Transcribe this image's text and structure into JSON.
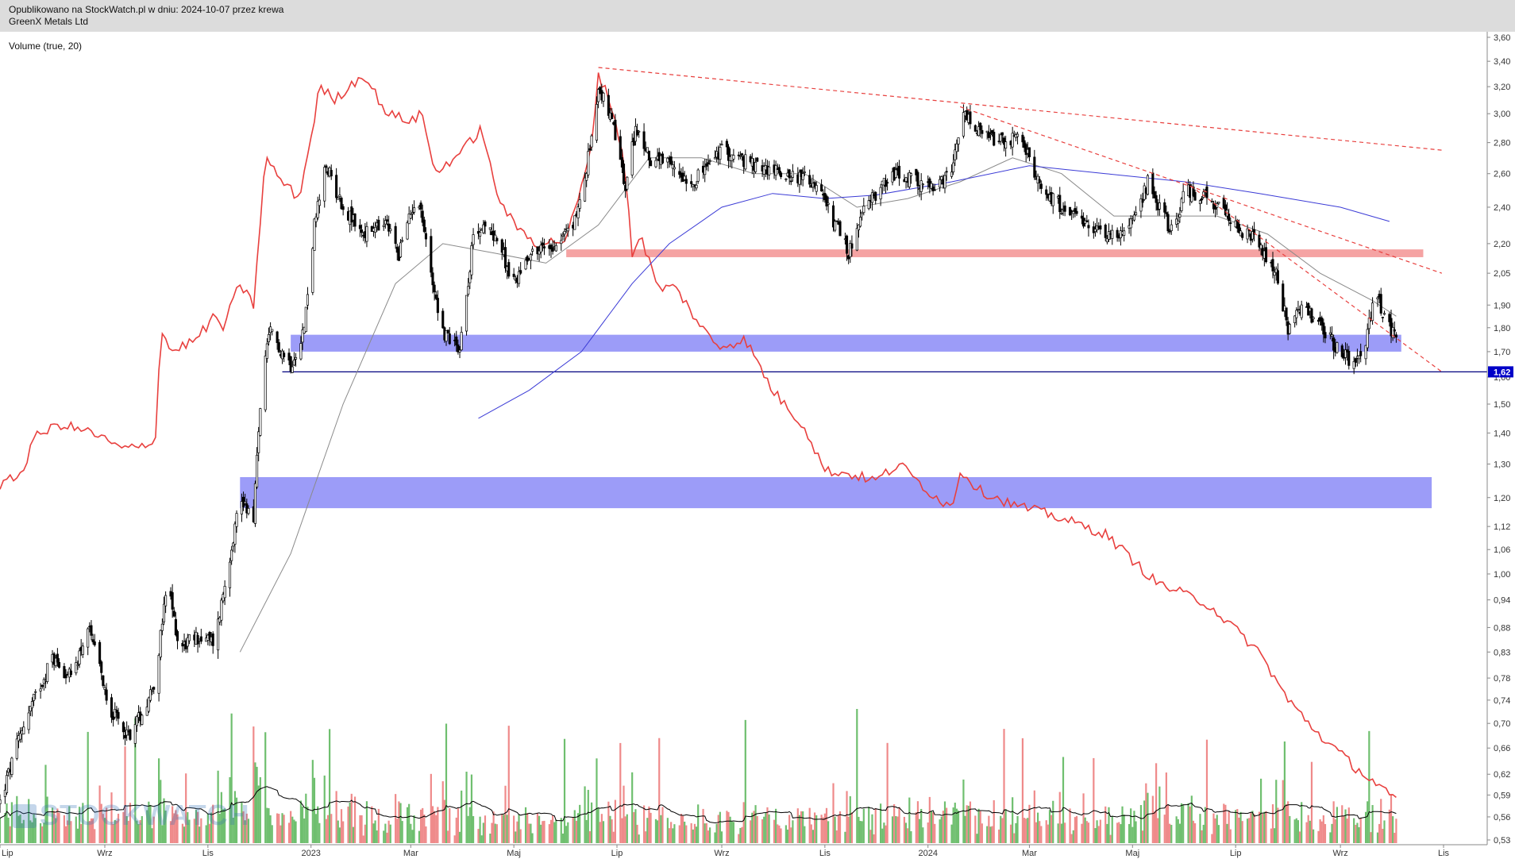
{
  "header": {
    "published": "Opublikowano na StockWatch.pl w dniu: 2024-10-07 przez krewa",
    "instrument": "GreenX Metals Ltd"
  },
  "volume_label": "Volume (true, 20)",
  "watermark": "STOCKWATCH",
  "colors": {
    "candle": "#000000",
    "relative_line": "#e8403e",
    "ma_long": "#3b3bd6",
    "ma_short": "#8a8a8a",
    "trendline": "#e8403e",
    "zone": "#7b7bf5",
    "resistance": "#f5a3a3",
    "support_line": "#00007f",
    "volume_up": "#6fbf6f",
    "volume_down": "#ef8a8a",
    "price_badge": "#0000c8"
  },
  "chart_data": {
    "type": "candlestick",
    "y_axis": {
      "scale": "log",
      "ylim": [
        0.53,
        3.6
      ],
      "ticks": [
        "3,60",
        "3,40",
        "3,20",
        "3,00",
        "2,80",
        "2,60",
        "2,40",
        "2,20",
        "2,05",
        "1,90",
        "1,80",
        "1,70",
        "1,60",
        "1,50",
        "1,40",
        "1,30",
        "1,20",
        "1,12",
        "1,06",
        "1,00",
        "0,94",
        "0,88",
        "0,83",
        "0,78",
        "0,74",
        "0,70",
        "0,66",
        "0,62",
        "0,59",
        "0,56",
        "0,53"
      ],
      "current_price": "1,62"
    },
    "x_axis": {
      "range": [
        "2022-07-01",
        "2024-11-01"
      ],
      "ticks": [
        {
          "label": "Lip",
          "date": "2022-07-01"
        },
        {
          "label": "Wrz",
          "date": "2022-09-01"
        },
        {
          "label": "Lis",
          "date": "2022-11-01"
        },
        {
          "label": "2023",
          "date": "2023-01-01"
        },
        {
          "label": "Mar",
          "date": "2023-03-01"
        },
        {
          "label": "Maj",
          "date": "2023-05-01"
        },
        {
          "label": "Lip",
          "date": "2023-07-01"
        },
        {
          "label": "Wrz",
          "date": "2023-09-01"
        },
        {
          "label": "Lis",
          "date": "2023-11-01"
        },
        {
          "label": "2024",
          "date": "2024-01-01"
        },
        {
          "label": "Mar",
          "date": "2024-03-01"
        },
        {
          "label": "Maj",
          "date": "2024-05-01"
        },
        {
          "label": "Lip",
          "date": "2024-07-01"
        },
        {
          "label": "Wrz",
          "date": "2024-09-01"
        },
        {
          "label": "Lis",
          "date": "2024-11-01"
        }
      ]
    },
    "price_path": [
      [
        "2022-07-01",
        0.58
      ],
      [
        "2022-07-15",
        0.7
      ],
      [
        "2022-08-01",
        0.82
      ],
      [
        "2022-08-12",
        0.78
      ],
      [
        "2022-08-22",
        0.88
      ],
      [
        "2022-09-05",
        0.72
      ],
      [
        "2022-09-15",
        0.68
      ],
      [
        "2022-09-25",
        0.73
      ],
      [
        "2022-10-01",
        0.78
      ],
      [
        "2022-10-08",
        0.98
      ],
      [
        "2022-10-15",
        0.84
      ],
      [
        "2022-10-25",
        0.86
      ],
      [
        "2022-11-05",
        0.85
      ],
      [
        "2022-11-12",
        1.0
      ],
      [
        "2022-11-20",
        1.2
      ],
      [
        "2022-11-28",
        1.15
      ],
      [
        "2022-12-03",
        1.6
      ],
      [
        "2022-12-08",
        1.78
      ],
      [
        "2022-12-15",
        1.7
      ],
      [
        "2022-12-20",
        1.65
      ],
      [
        "2022-12-28",
        1.8
      ],
      [
        "2023-01-03",
        2.3
      ],
      [
        "2023-01-10",
        2.65
      ],
      [
        "2023-01-20",
        2.4
      ],
      [
        "2023-02-01",
        2.25
      ],
      [
        "2023-02-15",
        2.3
      ],
      [
        "2023-02-22",
        2.15
      ],
      [
        "2023-03-05",
        2.5
      ],
      [
        "2023-03-12",
        2.1
      ],
      [
        "2023-03-20",
        1.78
      ],
      [
        "2023-03-30",
        1.72
      ],
      [
        "2023-04-08",
        2.3
      ],
      [
        "2023-04-20",
        2.25
      ],
      [
        "2023-05-01",
        2.0
      ],
      [
        "2023-05-10",
        2.15
      ],
      [
        "2023-05-25",
        2.2
      ],
      [
        "2023-06-05",
        2.3
      ],
      [
        "2023-06-12",
        2.55
      ],
      [
        "2023-06-20",
        3.2
      ],
      [
        "2023-06-25",
        3.05
      ],
      [
        "2023-07-01",
        2.8
      ],
      [
        "2023-07-06",
        2.5
      ],
      [
        "2023-07-12",
        2.9
      ],
      [
        "2023-07-20",
        2.7
      ],
      [
        "2023-08-01",
        2.65
      ],
      [
        "2023-08-15",
        2.55
      ],
      [
        "2023-09-01",
        2.75
      ],
      [
        "2023-09-20",
        2.65
      ],
      [
        "2023-10-10",
        2.6
      ],
      [
        "2023-10-25",
        2.55
      ],
      [
        "2023-11-05",
        2.35
      ],
      [
        "2023-11-15",
        2.15
      ],
      [
        "2023-11-25",
        2.4
      ],
      [
        "2023-12-10",
        2.6
      ],
      [
        "2023-12-25",
        2.55
      ],
      [
        "2024-01-05",
        2.5
      ],
      [
        "2024-01-15",
        2.6
      ],
      [
        "2024-01-22",
        3.0
      ],
      [
        "2024-02-01",
        2.85
      ],
      [
        "2024-02-15",
        2.8
      ],
      [
        "2024-02-25",
        2.85
      ],
      [
        "2024-03-05",
        2.55
      ],
      [
        "2024-03-15",
        2.45
      ],
      [
        "2024-04-01",
        2.3
      ],
      [
        "2024-04-20",
        2.25
      ],
      [
        "2024-05-01",
        2.3
      ],
      [
        "2024-05-10",
        2.55
      ],
      [
        "2024-05-25",
        2.25
      ],
      [
        "2024-06-01",
        2.5
      ],
      [
        "2024-06-15",
        2.45
      ],
      [
        "2024-07-01",
        2.3
      ],
      [
        "2024-07-15",
        2.2
      ],
      [
        "2024-07-25",
        2.05
      ],
      [
        "2024-08-01",
        1.8
      ],
      [
        "2024-08-10",
        1.9
      ],
      [
        "2024-08-20",
        1.8
      ],
      [
        "2024-09-01",
        1.7
      ],
      [
        "2024-09-08",
        1.65
      ],
      [
        "2024-09-15",
        1.72
      ],
      [
        "2024-09-22",
        1.95
      ],
      [
        "2024-09-30",
        1.8
      ],
      [
        "2024-10-04",
        1.78
      ]
    ],
    "relative_line": [
      [
        "2022-07-01",
        1.23
      ],
      [
        "2022-07-15",
        1.28
      ],
      [
        "2022-07-20",
        1.38
      ],
      [
        "2022-08-05",
        1.43
      ],
      [
        "2022-08-25",
        1.4
      ],
      [
        "2022-09-10",
        1.35
      ],
      [
        "2022-09-20",
        1.35
      ],
      [
        "2022-10-01",
        1.38
      ],
      [
        "2022-10-04",
        1.8
      ],
      [
        "2022-10-10",
        1.7
      ],
      [
        "2022-10-25",
        1.75
      ],
      [
        "2022-11-05",
        1.85
      ],
      [
        "2022-11-10",
        1.8
      ],
      [
        "2022-11-20",
        2.0
      ],
      [
        "2022-11-28",
        1.9
      ],
      [
        "2022-12-05",
        2.7
      ],
      [
        "2022-12-15",
        2.55
      ],
      [
        "2022-12-25",
        2.45
      ],
      [
        "2023-01-02",
        2.9
      ],
      [
        "2023-01-06",
        3.2
      ],
      [
        "2023-01-15",
        3.1
      ],
      [
        "2023-02-01",
        3.3
      ],
      [
        "2023-02-15",
        3.0
      ],
      [
        "2023-03-01",
        2.95
      ],
      [
        "2023-03-08",
        3.0
      ],
      [
        "2023-03-15",
        2.6
      ],
      [
        "2023-04-01",
        2.75
      ],
      [
        "2023-04-12",
        2.9
      ],
      [
        "2023-04-20",
        2.5
      ],
      [
        "2023-05-01",
        2.3
      ],
      [
        "2023-05-15",
        2.2
      ],
      [
        "2023-06-01",
        2.22
      ],
      [
        "2023-06-15",
        2.7
      ],
      [
        "2023-06-20",
        3.3
      ],
      [
        "2023-06-28",
        3.05
      ],
      [
        "2023-07-05",
        2.7
      ],
      [
        "2023-07-10",
        2.15
      ],
      [
        "2023-07-15",
        2.25
      ],
      [
        "2023-07-25",
        1.98
      ],
      [
        "2023-08-05",
        1.98
      ],
      [
        "2023-08-20",
        1.8
      ],
      [
        "2023-08-30",
        1.72
      ],
      [
        "2023-09-15",
        1.75
      ],
      [
        "2023-10-01",
        1.55
      ],
      [
        "2023-10-20",
        1.42
      ],
      [
        "2023-11-01",
        1.28
      ],
      [
        "2023-11-15",
        1.27
      ],
      [
        "2023-12-01",
        1.25
      ],
      [
        "2023-12-15",
        1.3
      ],
      [
        "2024-01-01",
        1.22
      ],
      [
        "2024-01-15",
        1.17
      ],
      [
        "2024-01-20",
        1.28
      ],
      [
        "2024-02-01",
        1.22
      ],
      [
        "2024-02-20",
        1.18
      ],
      [
        "2024-03-15",
        1.15
      ],
      [
        "2024-04-15",
        1.1
      ],
      [
        "2024-05-15",
        0.98
      ],
      [
        "2024-06-15",
        0.93
      ],
      [
        "2024-07-15",
        0.83
      ],
      [
        "2024-08-01",
        0.74
      ],
      [
        "2024-08-20",
        0.68
      ],
      [
        "2024-09-10",
        0.63
      ],
      [
        "2024-09-25",
        0.6
      ],
      [
        "2024-10-04",
        0.58
      ]
    ],
    "ma_short": [
      [
        "2022-11-20",
        0.83
      ],
      [
        "2022-12-20",
        1.05
      ],
      [
        "2023-01-20",
        1.5
      ],
      [
        "2023-02-20",
        2.0
      ],
      [
        "2023-03-20",
        2.2
      ],
      [
        "2023-04-20",
        2.15
      ],
      [
        "2023-05-20",
        2.1
      ],
      [
        "2023-06-20",
        2.3
      ],
      [
        "2023-07-20",
        2.7
      ],
      [
        "2023-08-20",
        2.7
      ],
      [
        "2023-09-20",
        2.6
      ],
      [
        "2023-10-20",
        2.6
      ],
      [
        "2023-11-20",
        2.4
      ],
      [
        "2023-12-20",
        2.45
      ],
      [
        "2024-01-20",
        2.55
      ],
      [
        "2024-02-20",
        2.7
      ],
      [
        "2024-03-20",
        2.6
      ],
      [
        "2024-04-20",
        2.35
      ],
      [
        "2024-05-20",
        2.35
      ],
      [
        "2024-06-20",
        2.35
      ],
      [
        "2024-07-20",
        2.25
      ],
      [
        "2024-08-20",
        2.05
      ],
      [
        "2024-09-20",
        1.92
      ],
      [
        "2024-10-04",
        1.85
      ]
    ],
    "ma_long": [
      [
        "2023-04-10",
        1.45
      ],
      [
        "2023-05-10",
        1.55
      ],
      [
        "2023-06-10",
        1.7
      ],
      [
        "2023-07-10",
        2.0
      ],
      [
        "2023-08-01",
        2.2
      ],
      [
        "2023-09-01",
        2.4
      ],
      [
        "2023-10-01",
        2.48
      ],
      [
        "2023-11-01",
        2.45
      ],
      [
        "2023-12-01",
        2.47
      ],
      [
        "2024-01-15",
        2.55
      ],
      [
        "2024-03-01",
        2.65
      ],
      [
        "2024-04-15",
        2.6
      ],
      [
        "2024-06-01",
        2.55
      ],
      [
        "2024-07-15",
        2.48
      ],
      [
        "2024-09-01",
        2.4
      ],
      [
        "2024-09-30",
        2.32
      ]
    ],
    "trendlines": [
      {
        "from": [
          "2023-06-20",
          3.35
        ],
        "to": [
          "2024-10-31",
          2.75
        ]
      },
      {
        "from": [
          "2024-01-20",
          3.05
        ],
        "to": [
          "2024-10-31",
          2.05
        ]
      },
      {
        "from": [
          "2024-06-01",
          2.55
        ],
        "to": [
          "2024-10-31",
          1.62
        ]
      }
    ],
    "zones": [
      {
        "from": "2022-12-20",
        "to": "2024-10-07",
        "y": [
          1.7,
          1.77
        ]
      },
      {
        "from": "2022-11-20",
        "to": "2024-10-25",
        "y": [
          1.17,
          1.26
        ]
      }
    ],
    "resistance_band": {
      "from": "2023-06-01",
      "to": "2024-10-20",
      "y": [
        2.13,
        2.17
      ]
    },
    "support_line": {
      "from": "2022-12-15",
      "value": 1.62
    }
  }
}
